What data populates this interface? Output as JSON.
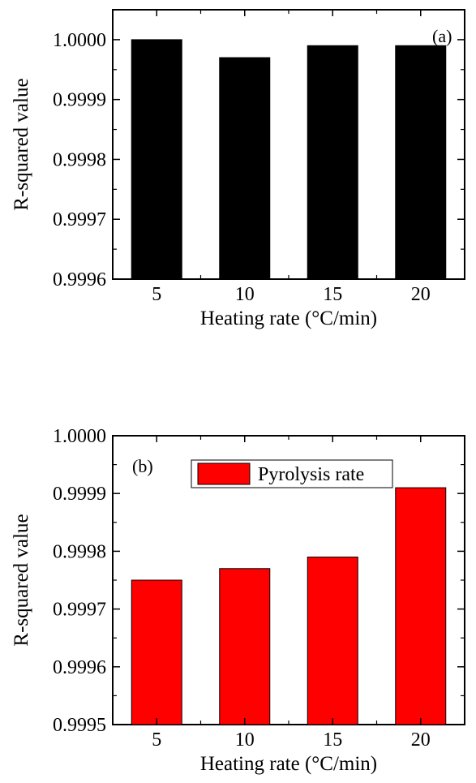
{
  "chart_data": [
    {
      "type": "bar",
      "panel_label": "(a)",
      "categories": [
        "5",
        "10",
        "15",
        "20"
      ],
      "values": [
        1.0,
        0.99997,
        0.99999,
        0.99999
      ],
      "xlabel": "Heating rate (°C/min)",
      "ylabel": "R-squared value",
      "ylim": [
        0.9996,
        1.00005
      ],
      "yticks": [
        "0.9996",
        "0.9997",
        "0.9998",
        "0.9999",
        "1.0000"
      ],
      "bar_color": "#000000",
      "legend": null,
      "grid": false
    },
    {
      "type": "bar",
      "panel_label": "(b)",
      "categories": [
        "5",
        "10",
        "15",
        "20"
      ],
      "values": [
        0.99975,
        0.99977,
        0.99979,
        0.99991
      ],
      "xlabel": "Heating rate (°C/min)",
      "ylabel": "R-squared value",
      "ylim": [
        0.9995,
        1.0
      ],
      "yticks": [
        "0.9995",
        "0.9996",
        "0.9997",
        "0.9998",
        "0.9999",
        "1.0000"
      ],
      "bar_color": "#ff0000",
      "legend": {
        "label": "Pyrolysis rate",
        "position": "top-center"
      },
      "grid": false
    }
  ]
}
